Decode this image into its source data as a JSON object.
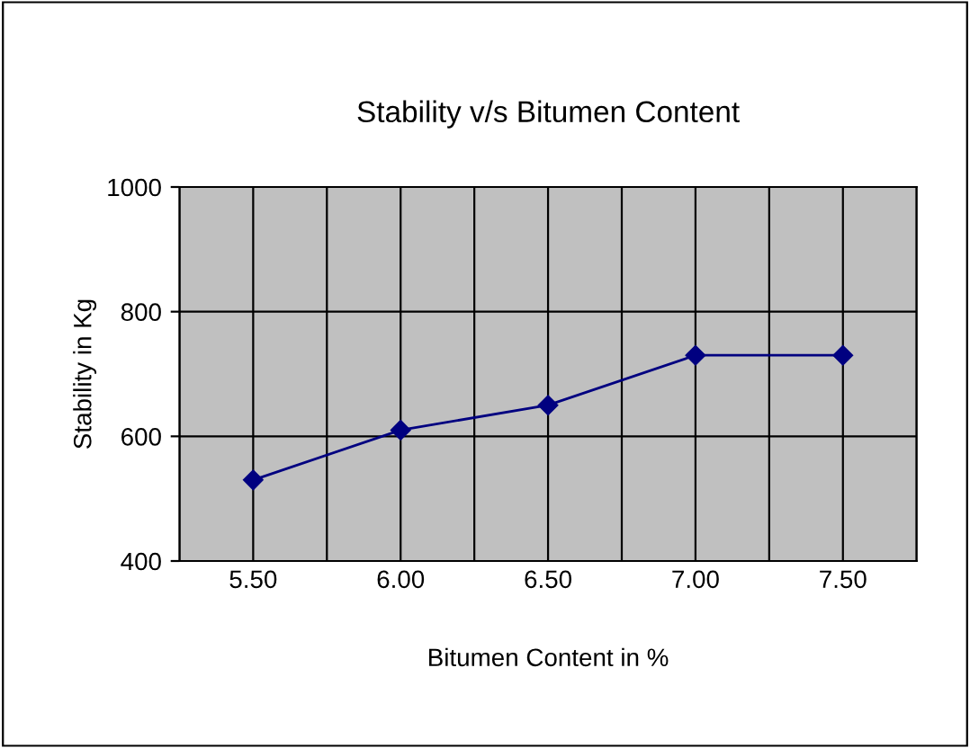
{
  "chart_data": {
    "type": "line",
    "title": "Stability v/s Bitumen Content",
    "xlabel": "Bitumen Content in %",
    "ylabel": "Stability in Kg",
    "categories": [
      "5.50",
      "6.00",
      "6.50",
      "7.00",
      "7.50"
    ],
    "series": [
      {
        "color": "#000080",
        "values": [
          530,
          610,
          650,
          730,
          730
        ]
      }
    ],
    "ylim": [
      400,
      1000
    ],
    "yticks": [
      400,
      600,
      800,
      1000
    ],
    "grid": true,
    "marker": "diamond",
    "line_style": "solid",
    "legend": false
  }
}
